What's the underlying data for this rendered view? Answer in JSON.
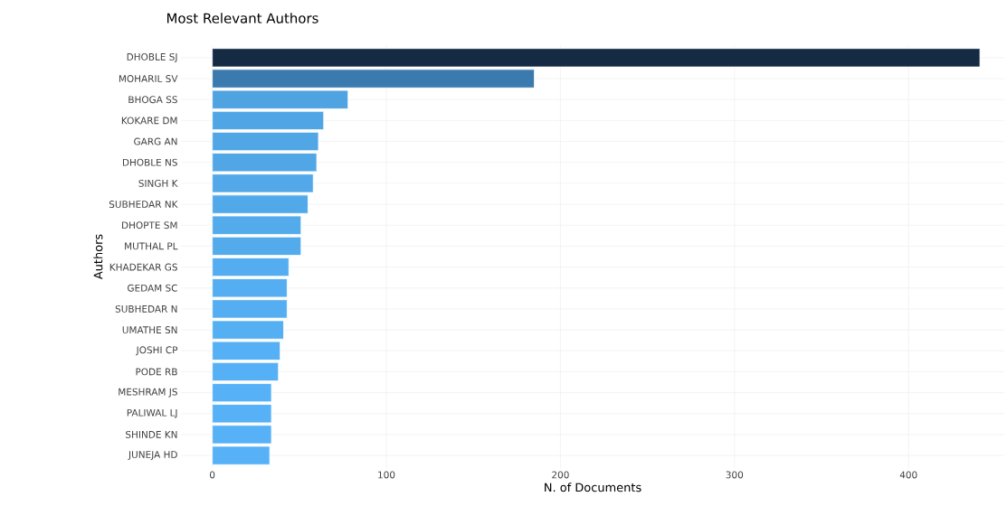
{
  "chart_data": {
    "type": "bar",
    "orientation": "horizontal",
    "title": "Most Relevant Authors",
    "xlabel": "N. of Documents",
    "ylabel": "Authors",
    "categories": [
      "DHOBLE SJ",
      "MOHARIL SV",
      "BHOGA SS",
      "KOKARE DM",
      "GARG AN",
      "DHOBLE NS",
      "SINGH K",
      "SUBHEDAR NK",
      "DHOPTE SM",
      "MUTHAL PL",
      "KHADEKAR GS",
      "GEDAM SC",
      "SUBHEDAR N",
      "UMATHE SN",
      "JOSHI CP",
      "PODE RB",
      "MESHRAM JS",
      "PALIWAL LJ",
      "SHINDE KN",
      "JUNEJA HD"
    ],
    "values": [
      441,
      185,
      78,
      64,
      61,
      60,
      58,
      55,
      51,
      51,
      44,
      43,
      43,
      41,
      39,
      38,
      34,
      34,
      34,
      33
    ],
    "colors": [
      "#152b44",
      "#3a7aae",
      "#4fa3e1",
      "#50a5e4",
      "#51a6e6",
      "#51a7e6",
      "#52a8e8",
      "#52a9ea",
      "#53abec",
      "#53abec",
      "#54adf0",
      "#54aef1",
      "#54aef1",
      "#55aff3",
      "#55b0f5",
      "#55b0f5",
      "#56b1f7",
      "#56b1f7",
      "#56b1f7",
      "#56b1f7"
    ],
    "xlim": [
      -18,
      455
    ],
    "xticks": [
      0,
      100,
      200,
      300,
      400
    ],
    "grid": true
  }
}
